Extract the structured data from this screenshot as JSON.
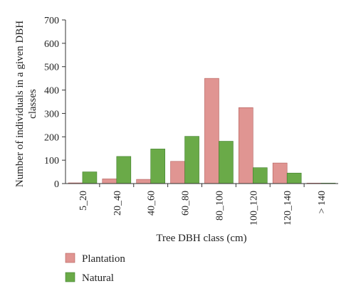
{
  "chart_data": {
    "type": "bar",
    "categories": [
      "5_20",
      "20_40",
      "40_60",
      "60_80",
      "80_100",
      "100_120",
      "120_140",
      "> 140"
    ],
    "series": [
      {
        "name": "Plantation",
        "color": "#e09592",
        "values": [
          3,
          20,
          18,
          95,
          450,
          325,
          88,
          2
        ]
      },
      {
        "name": "Natural",
        "color": "#6aaa48",
        "values": [
          50,
          116,
          148,
          202,
          181,
          68,
          45,
          2
        ]
      }
    ],
    "xlabel": "Tree DBH class (cm)",
    "ylabel_lines": [
      "Number of individuals in a given DBH",
      "classes"
    ],
    "ylim": [
      0,
      700
    ],
    "yticks": [
      "0",
      "100",
      "200",
      "300",
      "400",
      "500",
      "600",
      "700"
    ],
    "grid": false,
    "legend_position": "bottom-left"
  }
}
